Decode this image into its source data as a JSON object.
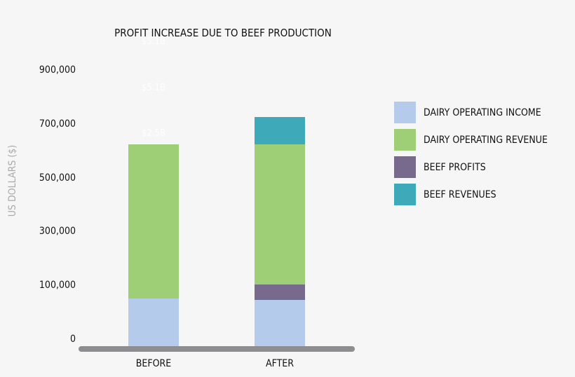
{
  "chart_data": {
    "type": "bar",
    "stacked": true,
    "title": "PROFIT INCREASE DUE TO BEEF PRODUCTION",
    "ylabel": "US DOLLARS ($)",
    "xlabel": "",
    "categories": [
      "BEFORE",
      "AFTER"
    ],
    "yticks": [
      0,
      100000,
      300000,
      500000,
      700000,
      900000
    ],
    "ytick_labels": [
      "0",
      "100,000",
      "300,000",
      "500,000",
      "700,000",
      "900,000"
    ],
    "grid": false,
    "legend_placement": "right",
    "series": [
      {
        "name": "DAIRY OPERATING INCOME",
        "color": "#b5cbeb",
        "values": [
          75000,
          73000
        ]
      },
      {
        "name": "BEEF PROFITS",
        "color": "#776a8c",
        "values": [
          0,
          31000
        ]
      },
      {
        "name": "DAIRY OPERATING REVENUE",
        "color": "#9ecf76",
        "values": [
          550000,
          521000
        ]
      },
      {
        "name": "BEEF REVENUES",
        "color": "#3ea9b8",
        "values": [
          0,
          101000
        ]
      }
    ],
    "legend_order": [
      "DAIRY OPERATING INCOME",
      "DAIRY OPERATING REVENUE",
      "BEEF PROFITS",
      "BEEF REVENUES"
    ],
    "annotations": [
      "$5.1B",
      "$5.1B",
      "$2.5B"
    ]
  }
}
